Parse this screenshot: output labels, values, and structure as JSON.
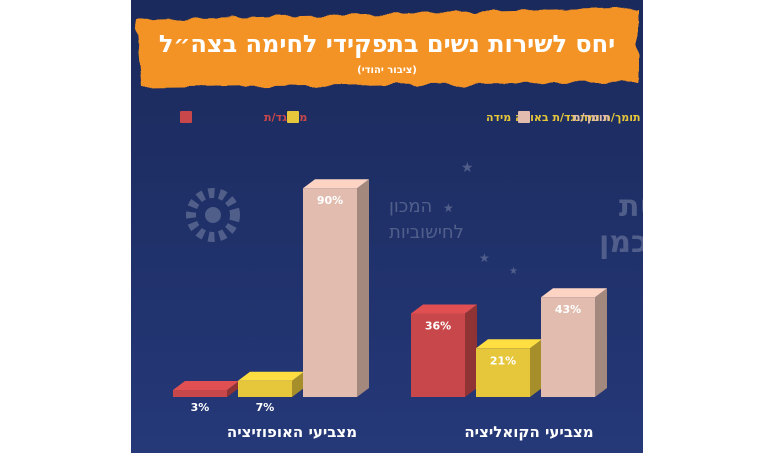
{
  "chart_data": {
    "type": "bar",
    "title": "יחס לשירות נשים בתפקידי לחימה בצה״ל",
    "subtitle": "(ציבור יהודי)",
    "categories": [
      "מצביעי הקואליציה",
      "מצביעי האופוזיציה"
    ],
    "series": [
      {
        "name": "מתנגד/ת",
        "values": [
          36,
          3
        ],
        "value_labels": [
          "36%",
          "3%"
        ]
      },
      {
        "name": "תומך/ת ומתנגד/ת באותה מידה",
        "values": [
          21,
          7
        ],
        "value_labels": [
          "21%",
          "7%"
        ]
      },
      {
        "name": "תומך/ת",
        "values": [
          43,
          90
        ],
        "value_labels": [
          "43%",
          "90%"
        ]
      }
    ],
    "ylim": [
      0,
      100
    ],
    "legend_position": "top",
    "colors": {
      "background": "#1f3068",
      "title_banner": "#f39325",
      "oppose": "#c8474a",
      "neutral": "#e6c63a",
      "support": "#e2bdaf"
    },
    "watermark": {
      "university": "אוניברסיטת רייכמן",
      "institute_line1": "המכון",
      "institute_line2": "לחישוביות"
    }
  }
}
